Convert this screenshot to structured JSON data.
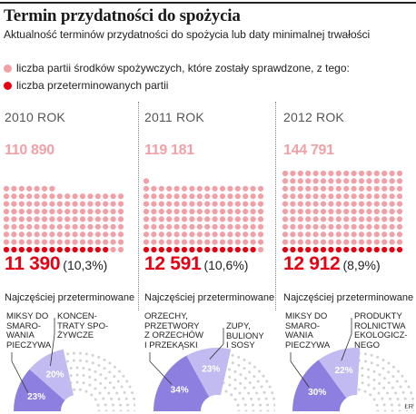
{
  "header": {
    "title": "Termin przydatności do spożycia",
    "subtitle": "Aktualność terminów przydatności do spożycia lub daty minimalnej trwałości"
  },
  "legend": [
    {
      "label": "liczba partii środków spożywczych, które zostały sprawdzone, z tego:",
      "color": "#f2a0a7"
    },
    {
      "label": "liczba przeterminowanych partii",
      "color": "#e60012"
    }
  ],
  "colors": {
    "checked": "#f2a0a7",
    "expired": "#e60012",
    "arc_dark": "#8c7fe0",
    "arc_mid": "#c2bbf2",
    "arc_light": "#e2dff9",
    "arc_dots": "#d2d2d2"
  },
  "most_expired_label": "Najczęściej przeterminowane",
  "credit": "ŁR",
  "chart_data": [
    {
      "type": "bar",
      "year_label": "2010 ROK",
      "checked_label": "110 890",
      "expired_label": "11 390",
      "expired_pct_label": "(10,3%)",
      "checked": 110890,
      "expired": 11390,
      "expired_pct": 10.3,
      "top_expired": [
        {
          "label": "MIKSY DO\nSMARO-\nWANIA\nPIECZYWA",
          "value_label": "23%",
          "value": 23
        },
        {
          "label": "KONCEN-\nTRATY SPO-\nŻYWCZE",
          "value_label": "20%",
          "value": 20
        }
      ]
    },
    {
      "type": "bar",
      "year_label": "2011 ROK",
      "checked_label": "119 181",
      "expired_label": "12 591",
      "expired_pct_label": "(10,6%)",
      "checked": 119181,
      "expired": 12591,
      "expired_pct": 10.6,
      "top_expired": [
        {
          "label": "ORZECHY,\nPRZETWORY\nZ ORZECHÓW\nI PRZEKĄSKI",
          "value_label": "34%",
          "value": 34
        },
        {
          "label": "ZUPY,\nBULIONY\nI SOSY",
          "value_label": "23%",
          "value": 23
        }
      ]
    },
    {
      "type": "bar",
      "year_label": "2012 ROK",
      "checked_label": "144 791",
      "expired_label": "12 912",
      "expired_pct_label": "(8,9%)",
      "checked": 144791,
      "expired": 12912,
      "expired_pct": 8.9,
      "top_expired": [
        {
          "label": "MIKSY DO\nSMARO-\nWANIA\nPIECZYWA",
          "value_label": "30%",
          "value": 30
        },
        {
          "label": "PRODUKTY\nROLNICTWA\nEKOLOGICZ-\nNEGO",
          "value_label": "22%",
          "value": 22
        }
      ]
    }
  ]
}
